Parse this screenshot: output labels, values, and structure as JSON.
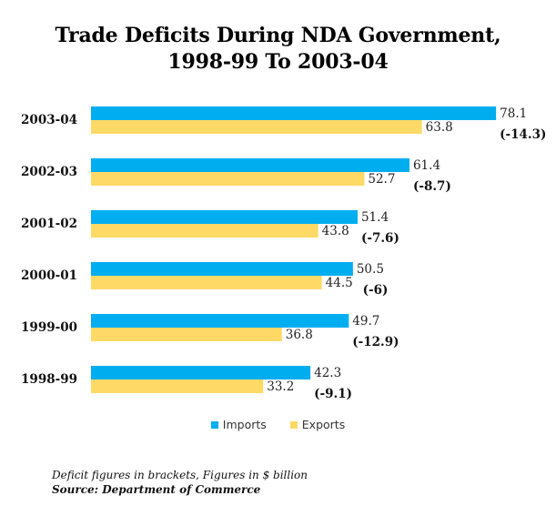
{
  "chart_data": {
    "type": "bar",
    "orientation": "horizontal",
    "title_line1": "Trade Deficits During NDA Government,",
    "title_line2": "1998-99 To 2003-04",
    "categories": [
      "2003-04",
      "2002-03",
      "2001-02",
      "2000-01",
      "1999-00",
      "1998-99"
    ],
    "series": [
      {
        "name": "Imports",
        "color": "#00AEEF",
        "values": [
          78.1,
          61.4,
          51.4,
          50.5,
          49.7,
          42.3
        ],
        "labels": [
          "78.1",
          "61.4",
          "51.4",
          "50.5",
          "49.7",
          "42.3"
        ]
      },
      {
        "name": "Exports",
        "color": "#FFD966",
        "values": [
          63.8,
          52.7,
          43.8,
          44.5,
          36.8,
          33.2
        ],
        "labels": [
          "63.8",
          "52.7",
          "43.8",
          "44.5",
          "36.8",
          "33.2"
        ]
      }
    ],
    "deficit_labels": [
      "(-14.3)",
      "(-8.7)",
      "(-7.6)",
      "(-6)",
      "(-12.9)",
      "(-9.1)"
    ],
    "xlim": [
      0,
      80
    ],
    "grid": false,
    "legend_position": "bottom",
    "note": "Deficit figures in brackets, Figures in $ billion",
    "source": "Source: Department of Commerce"
  }
}
